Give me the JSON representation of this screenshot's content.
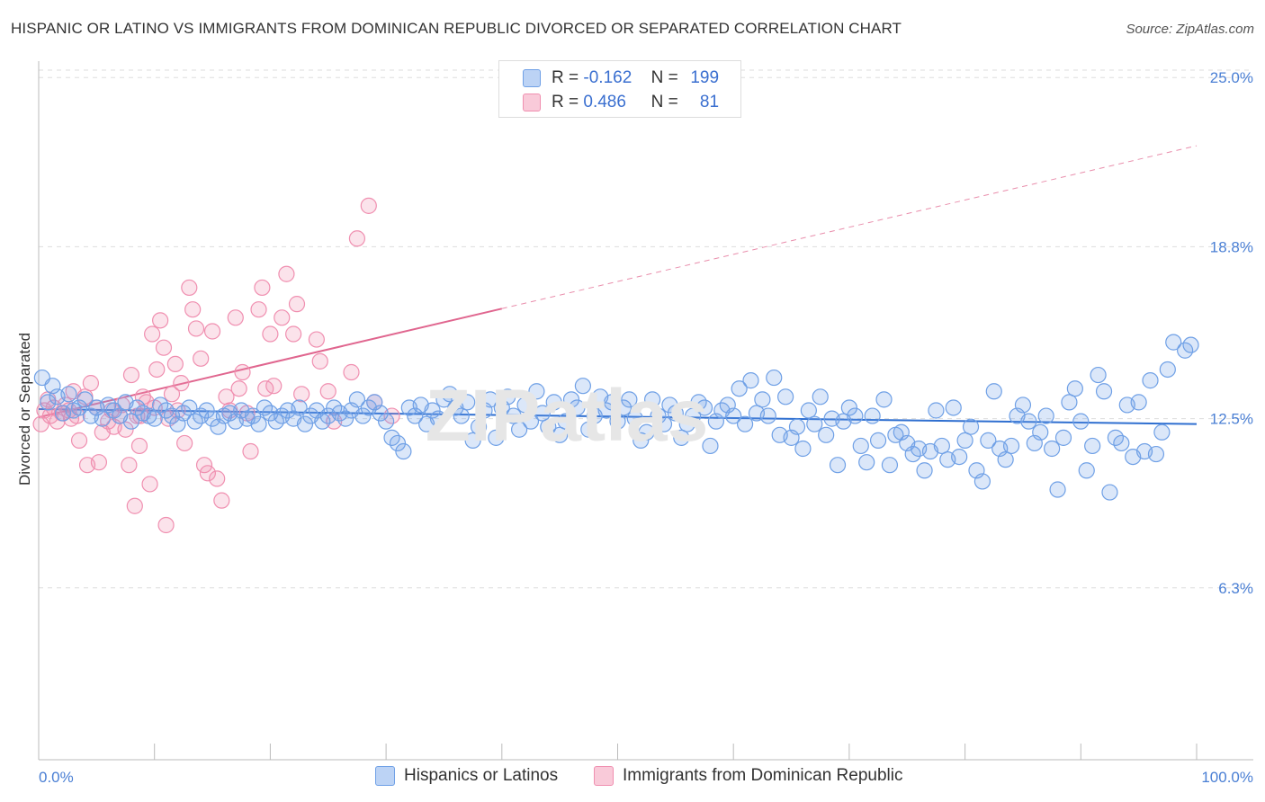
{
  "title": "HISPANIC OR LATINO VS IMMIGRANTS FROM DOMINICAN REPUBLIC DIVORCED OR SEPARATED CORRELATION CHART",
  "source": "Source: ZipAtlas.com",
  "legend_top": [
    {
      "r_label": "R =",
      "r_value": "-0.162",
      "n_label": "N =",
      "n_value": "199",
      "color": "#6fa0e6"
    },
    {
      "r_label": "R =",
      "r_value": "0.486",
      "n_label": "N =",
      "n_value": "81",
      "color": "#f08fb0"
    }
  ],
  "legend_bottom": [
    {
      "label": "Hispanics or Latinos",
      "color": "#6fa0e6"
    },
    {
      "label": "Immigrants from Dominican Republic",
      "color": "#f08fb0"
    }
  ],
  "chart_data": {
    "type": "scatter",
    "title": "HISPANIC OR LATINO VS IMMIGRANTS FROM DOMINICAN REPUBLIC DIVORCED OR SEPARATED CORRELATION CHART",
    "xlabel": "",
    "ylabel": "Divorced or Separated",
    "x_tick_labels": [
      "0.0%",
      "100.0%"
    ],
    "y_tick_labels": [
      "25.0%",
      "18.8%",
      "12.5%",
      "6.3%"
    ],
    "y_ticks": [
      25.0,
      18.8,
      12.5,
      6.3
    ],
    "xlim": [
      0,
      100
    ],
    "ylim": [
      0,
      25.6
    ],
    "grid": true,
    "legend_position": "top-center",
    "series": [
      {
        "name": "Hispanics or Latinos",
        "color": "#6fa0e6",
        "trend": {
          "x0": 0,
          "y0": 12.85,
          "x1": 100,
          "y1": 12.3
        },
        "points": [
          [
            0.3,
            14.0
          ],
          [
            0.8,
            13.1
          ],
          [
            1.2,
            13.7
          ],
          [
            1.6,
            13.3
          ],
          [
            2.1,
            12.7
          ],
          [
            2.6,
            13.4
          ],
          [
            3.0,
            12.8
          ],
          [
            3.5,
            12.9
          ],
          [
            4.0,
            13.2
          ],
          [
            4.5,
            12.6
          ],
          [
            5.0,
            12.9
          ],
          [
            5.5,
            12.5
          ],
          [
            6.0,
            13.0
          ],
          [
            6.5,
            12.8
          ],
          [
            7.0,
            12.6
          ],
          [
            7.5,
            13.1
          ],
          [
            8.0,
            12.4
          ],
          [
            8.5,
            12.9
          ],
          [
            9.0,
            12.7
          ],
          [
            9.5,
            12.6
          ],
          [
            10.0,
            12.5
          ],
          [
            10.5,
            13.0
          ],
          [
            11.0,
            12.8
          ],
          [
            11.5,
            12.6
          ],
          [
            12.0,
            12.3
          ],
          [
            12.5,
            12.7
          ],
          [
            13.0,
            12.9
          ],
          [
            13.5,
            12.4
          ],
          [
            14.0,
            12.6
          ],
          [
            14.5,
            12.8
          ],
          [
            15.0,
            12.5
          ],
          [
            15.5,
            12.2
          ],
          [
            16.0,
            12.6
          ],
          [
            16.5,
            12.7
          ],
          [
            17.0,
            12.4
          ],
          [
            17.5,
            12.8
          ],
          [
            18.0,
            12.5
          ],
          [
            18.5,
            12.6
          ],
          [
            19.0,
            12.3
          ],
          [
            19.5,
            12.9
          ],
          [
            20.0,
            12.7
          ],
          [
            20.5,
            12.4
          ],
          [
            21.0,
            12.6
          ],
          [
            21.5,
            12.8
          ],
          [
            22.0,
            12.5
          ],
          [
            22.5,
            12.9
          ],
          [
            23.0,
            12.3
          ],
          [
            23.5,
            12.6
          ],
          [
            24.0,
            12.8
          ],
          [
            24.5,
            12.4
          ],
          [
            25.0,
            12.6
          ],
          [
            25.5,
            12.9
          ],
          [
            26.0,
            12.7
          ],
          [
            26.5,
            12.5
          ],
          [
            27.0,
            12.8
          ],
          [
            27.5,
            13.2
          ],
          [
            28.0,
            12.6
          ],
          [
            28.5,
            12.9
          ],
          [
            29.0,
            13.1
          ],
          [
            29.5,
            12.7
          ],
          [
            30.0,
            12.4
          ],
          [
            30.5,
            11.8
          ],
          [
            31.0,
            11.6
          ],
          [
            31.5,
            11.3
          ],
          [
            32.0,
            12.9
          ],
          [
            32.5,
            12.6
          ],
          [
            33.0,
            13.0
          ],
          [
            33.5,
            12.3
          ],
          [
            34.0,
            12.8
          ],
          [
            34.5,
            12.5
          ],
          [
            35.0,
            13.2
          ],
          [
            35.5,
            13.4
          ],
          [
            36.0,
            12.9
          ],
          [
            36.5,
            12.6
          ],
          [
            37.0,
            13.1
          ],
          [
            37.5,
            11.7
          ],
          [
            38.0,
            12.2
          ],
          [
            38.5,
            12.8
          ],
          [
            39.0,
            13.2
          ],
          [
            39.5,
            11.8
          ],
          [
            40.0,
            12.9
          ],
          [
            40.5,
            13.3
          ],
          [
            41.0,
            12.6
          ],
          [
            41.5,
            12.1
          ],
          [
            42.0,
            13.0
          ],
          [
            42.5,
            12.4
          ],
          [
            43.0,
            13.5
          ],
          [
            43.5,
            12.7
          ],
          [
            44.0,
            12.2
          ],
          [
            44.5,
            13.1
          ],
          [
            45.0,
            11.9
          ],
          [
            45.5,
            12.4
          ],
          [
            46.0,
            13.2
          ],
          [
            46.5,
            12.9
          ],
          [
            47.0,
            13.7
          ],
          [
            47.5,
            12.1
          ],
          [
            48.0,
            12.6
          ],
          [
            48.5,
            13.3
          ],
          [
            49.0,
            12.8
          ],
          [
            49.5,
            13.1
          ],
          [
            50.0,
            12.4
          ],
          [
            50.5,
            12.9
          ],
          [
            51.0,
            13.2
          ],
          [
            51.5,
            12.5
          ],
          [
            52.0,
            11.7
          ],
          [
            52.5,
            12.0
          ],
          [
            53.0,
            13.2
          ],
          [
            53.5,
            12.6
          ],
          [
            54.0,
            12.3
          ],
          [
            54.5,
            13.0
          ],
          [
            55.0,
            12.7
          ],
          [
            55.5,
            11.8
          ],
          [
            56.0,
            12.3
          ],
          [
            56.5,
            12.6
          ],
          [
            57.0,
            13.1
          ],
          [
            57.5,
            12.9
          ],
          [
            58.0,
            11.5
          ],
          [
            58.5,
            12.4
          ],
          [
            59.0,
            12.8
          ],
          [
            59.5,
            13.0
          ],
          [
            60.0,
            12.6
          ],
          [
            60.5,
            13.6
          ],
          [
            61.0,
            12.3
          ],
          [
            61.5,
            13.9
          ],
          [
            62.0,
            12.7
          ],
          [
            62.5,
            13.2
          ],
          [
            63.0,
            12.6
          ],
          [
            63.5,
            14.0
          ],
          [
            64.0,
            11.9
          ],
          [
            64.5,
            13.3
          ],
          [
            65.0,
            11.8
          ],
          [
            65.5,
            12.2
          ],
          [
            66.0,
            11.4
          ],
          [
            66.5,
            12.8
          ],
          [
            67.0,
            12.3
          ],
          [
            67.5,
            13.3
          ],
          [
            68.0,
            11.9
          ],
          [
            68.5,
            12.5
          ],
          [
            69.0,
            10.8
          ],
          [
            69.5,
            12.4
          ],
          [
            70.0,
            12.9
          ],
          [
            70.5,
            12.6
          ],
          [
            71.0,
            11.5
          ],
          [
            71.5,
            10.9
          ],
          [
            72.0,
            12.6
          ],
          [
            72.5,
            11.7
          ],
          [
            73.0,
            13.2
          ],
          [
            73.5,
            10.8
          ],
          [
            74.0,
            11.9
          ],
          [
            74.5,
            12.0
          ],
          [
            75.0,
            11.6
          ],
          [
            75.5,
            11.2
          ],
          [
            76.0,
            11.4
          ],
          [
            76.5,
            10.6
          ],
          [
            77.0,
            11.3
          ],
          [
            77.5,
            12.8
          ],
          [
            78.0,
            11.5
          ],
          [
            78.5,
            11.0
          ],
          [
            79.0,
            12.9
          ],
          [
            79.5,
            11.1
          ],
          [
            80.0,
            11.7
          ],
          [
            80.5,
            12.2
          ],
          [
            81.0,
            10.6
          ],
          [
            81.5,
            10.2
          ],
          [
            82.0,
            11.7
          ],
          [
            82.5,
            13.5
          ],
          [
            83.0,
            11.4
          ],
          [
            83.5,
            11.0
          ],
          [
            84.0,
            11.5
          ],
          [
            84.5,
            12.6
          ],
          [
            85.0,
            13.0
          ],
          [
            85.5,
            12.4
          ],
          [
            86.0,
            11.6
          ],
          [
            86.5,
            12.0
          ],
          [
            87.0,
            12.6
          ],
          [
            87.5,
            11.4
          ],
          [
            88.0,
            9.9
          ],
          [
            88.5,
            11.8
          ],
          [
            89.0,
            13.1
          ],
          [
            89.5,
            13.6
          ],
          [
            90.0,
            12.4
          ],
          [
            90.5,
            10.6
          ],
          [
            91.0,
            11.5
          ],
          [
            91.5,
            14.1
          ],
          [
            92.0,
            13.5
          ],
          [
            92.5,
            9.8
          ],
          [
            93.0,
            11.8
          ],
          [
            93.5,
            11.6
          ],
          [
            94.0,
            13.0
          ],
          [
            94.5,
            11.1
          ],
          [
            95.0,
            13.1
          ],
          [
            95.5,
            11.3
          ],
          [
            96.0,
            13.9
          ],
          [
            96.5,
            11.2
          ],
          [
            97.0,
            12.0
          ],
          [
            97.5,
            14.3
          ],
          [
            98.0,
            15.3
          ],
          [
            99.0,
            15.0
          ],
          [
            99.5,
            15.2
          ]
        ]
      },
      {
        "name": "Immigrants from Dominican Republic",
        "color": "#f08fb0",
        "trend": {
          "x0": 0,
          "y0": 12.55,
          "x1": 100,
          "y1": 22.5
        },
        "trend_solid_until": 40,
        "points": [
          [
            0.2,
            12.3
          ],
          [
            0.5,
            12.8
          ],
          [
            0.8,
            13.2
          ],
          [
            1.0,
            12.6
          ],
          [
            1.3,
            12.9
          ],
          [
            1.6,
            12.4
          ],
          [
            2.0,
            12.7
          ],
          [
            2.3,
            13.0
          ],
          [
            2.6,
            12.8
          ],
          [
            3.0,
            13.5
          ],
          [
            3.3,
            12.6
          ],
          [
            3.5,
            11.7
          ],
          [
            4.0,
            13.3
          ],
          [
            4.2,
            10.8
          ],
          [
            4.5,
            13.8
          ],
          [
            5.0,
            12.9
          ],
          [
            5.2,
            10.9
          ],
          [
            5.5,
            12.0
          ],
          [
            6.0,
            12.4
          ],
          [
            6.3,
            12.8
          ],
          [
            6.5,
            12.2
          ],
          [
            7.0,
            12.6
          ],
          [
            7.2,
            13.0
          ],
          [
            7.5,
            12.1
          ],
          [
            7.8,
            10.8
          ],
          [
            8.0,
            14.1
          ],
          [
            8.3,
            9.3
          ],
          [
            8.5,
            12.6
          ],
          [
            8.7,
            11.5
          ],
          [
            9.0,
            13.3
          ],
          [
            9.3,
            13.1
          ],
          [
            9.6,
            10.1
          ],
          [
            9.8,
            15.6
          ],
          [
            10.0,
            12.9
          ],
          [
            10.2,
            14.3
          ],
          [
            10.5,
            16.1
          ],
          [
            10.8,
            15.1
          ],
          [
            11.0,
            8.6
          ],
          [
            11.2,
            12.5
          ],
          [
            11.5,
            13.4
          ],
          [
            11.8,
            14.5
          ],
          [
            12.0,
            12.8
          ],
          [
            12.3,
            13.8
          ],
          [
            12.6,
            11.6
          ],
          [
            13.0,
            17.3
          ],
          [
            13.3,
            16.5
          ],
          [
            13.6,
            15.8
          ],
          [
            14.0,
            14.7
          ],
          [
            14.3,
            10.8
          ],
          [
            14.6,
            10.5
          ],
          [
            15.0,
            15.7
          ],
          [
            15.4,
            10.3
          ],
          [
            15.8,
            9.5
          ],
          [
            16.2,
            13.3
          ],
          [
            16.5,
            12.8
          ],
          [
            17.0,
            16.2
          ],
          [
            17.3,
            13.6
          ],
          [
            17.6,
            14.2
          ],
          [
            18.0,
            12.7
          ],
          [
            18.3,
            11.3
          ],
          [
            19.0,
            16.5
          ],
          [
            19.3,
            17.3
          ],
          [
            19.6,
            13.6
          ],
          [
            20.0,
            15.6
          ],
          [
            20.3,
            13.7
          ],
          [
            21.0,
            16.2
          ],
          [
            21.4,
            17.8
          ],
          [
            22.0,
            15.6
          ],
          [
            22.3,
            16.7
          ],
          [
            22.7,
            13.4
          ],
          [
            24.0,
            15.4
          ],
          [
            24.3,
            14.6
          ],
          [
            25.0,
            13.5
          ],
          [
            25.5,
            12.4
          ],
          [
            27.0,
            14.2
          ],
          [
            27.5,
            19.1
          ],
          [
            28.5,
            20.3
          ],
          [
            29.0,
            13.1
          ],
          [
            30.5,
            12.6
          ],
          [
            8.8,
            12.6
          ],
          [
            2.8,
            12.5
          ]
        ]
      }
    ]
  }
}
